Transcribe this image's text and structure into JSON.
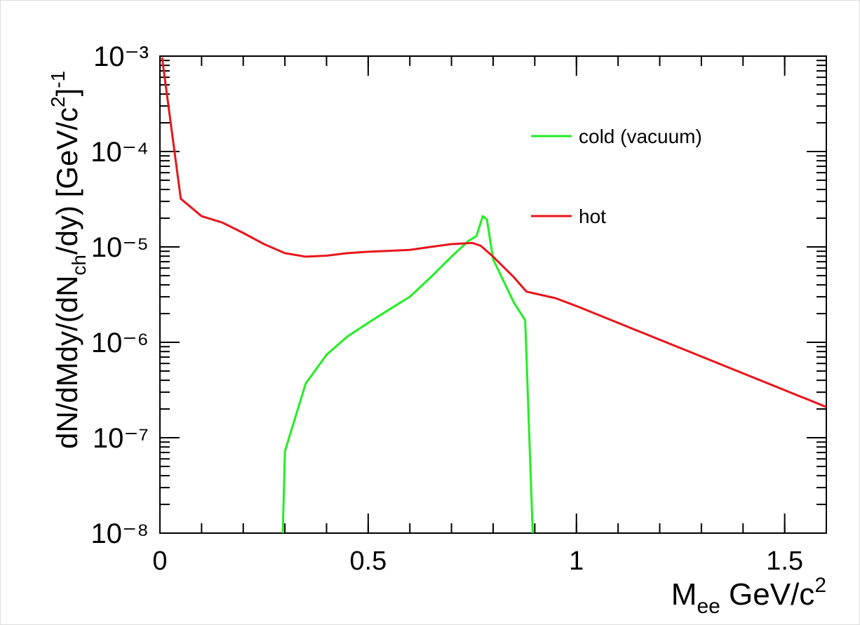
{
  "chart_data": {
    "type": "line",
    "xlabel": [
      "M",
      "ee",
      " GeV/c",
      "2"
    ],
    "ylabel": [
      "dN/dMdy/(dN",
      "ch",
      "/dy) [GeV/c",
      "2",
      "]",
      "-1"
    ],
    "xlim": [
      0,
      1.6
    ],
    "xticks": [
      0,
      0.5,
      1,
      1.5
    ],
    "ylim": [
      1e-08,
      0.001
    ],
    "yscale": "log",
    "yticks": [
      {
        "value": 1e-08,
        "label": "10⁻⁸"
      },
      {
        "value": 1e-07,
        "label": "10⁻⁷"
      },
      {
        "value": 1e-06,
        "label": "10⁻⁶"
      },
      {
        "value": 1e-05,
        "label": "10⁻⁵"
      },
      {
        "value": 0.0001,
        "label": "10⁻⁴"
      },
      {
        "value": 0.001,
        "label": "10⁻³"
      }
    ],
    "legend_position": "upper right",
    "series": [
      {
        "name": "cold (vacuum)",
        "color": "#22ee22",
        "x": [
          0.295,
          0.3,
          0.35,
          0.4,
          0.45,
          0.5,
          0.55,
          0.6,
          0.65,
          0.7,
          0.74,
          0.76,
          0.775,
          0.785,
          0.8,
          0.85,
          0.877,
          0.895
        ],
        "values": [
          1e-08,
          7.2e-08,
          3.7e-07,
          7.4e-07,
          1.15e-06,
          1.6e-06,
          2.2e-06,
          3e-06,
          4.8e-06,
          7.9e-06,
          1.15e-05,
          1.3e-05,
          2.1e-05,
          1.95e-05,
          7.4e-06,
          2.6e-06,
          1.7e-06,
          1e-08
        ]
      },
      {
        "name": "hot",
        "color": "#e8151b",
        "x": [
          0.005,
          0.05,
          0.1,
          0.15,
          0.2,
          0.25,
          0.3,
          0.35,
          0.4,
          0.45,
          0.5,
          0.55,
          0.6,
          0.65,
          0.7,
          0.75,
          0.77,
          0.8,
          0.85,
          0.88,
          0.95,
          1.0,
          1.6
        ],
        "values": [
          0.00097,
          3.2e-05,
          2.1e-05,
          1.8e-05,
          1.4e-05,
          1.07e-05,
          8.6e-06,
          7.9e-06,
          8.1e-06,
          8.6e-06,
          8.9e-06,
          9.1e-06,
          9.3e-06,
          1e-05,
          1.07e-05,
          1.1e-05,
          1.03e-05,
          7.9e-06,
          4.8e-06,
          3.4e-06,
          2.9e-06,
          2.4e-06,
          2.1e-07
        ]
      }
    ]
  }
}
